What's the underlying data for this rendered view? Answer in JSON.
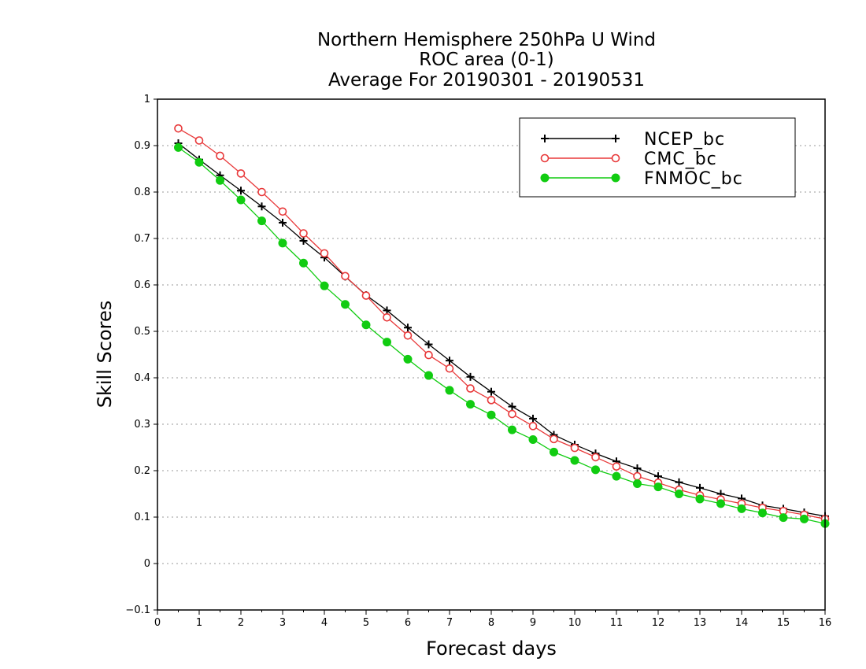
{
  "chart_data": {
    "type": "line",
    "title": [
      "Northern Hemisphere 250hPa U Wind",
      "ROC area (0-1)",
      "Average For 20190301 - 20190531"
    ],
    "xlabel": "Forecast days",
    "ylabel": "Skill Scores",
    "xlim": [
      0,
      16
    ],
    "ylim": [
      -0.1,
      1
    ],
    "xticks": [
      "0",
      "1",
      "2",
      "3",
      "4",
      "5",
      "6",
      "7",
      "8",
      "9",
      "10",
      "11",
      "12",
      "13",
      "14",
      "15",
      "16"
    ],
    "yticks": [
      "-0.1",
      "0",
      "0.1",
      "0.2",
      "0.3",
      "0.4",
      "0.5",
      "0.6",
      "0.7",
      "0.8",
      "0.9",
      "1"
    ],
    "grid": true,
    "legend_position": "top-right",
    "x": [
      0.5,
      1,
      1.5,
      2,
      2.5,
      3,
      3.5,
      4,
      4.5,
      5,
      5.5,
      6,
      6.5,
      7,
      7.5,
      8,
      8.5,
      9,
      9.5,
      10,
      10.5,
      11,
      11.5,
      12,
      12.5,
      13,
      13.5,
      14,
      14.5,
      15,
      15.5,
      16
    ],
    "series": [
      {
        "name": "NCEP_bc",
        "color": "#000000",
        "marker": "plus",
        "values": [
          0.905,
          0.87,
          0.836,
          0.803,
          0.769,
          0.734,
          0.695,
          0.659,
          0.618,
          0.578,
          0.545,
          0.508,
          0.472,
          0.437,
          0.402,
          0.37,
          0.338,
          0.312,
          0.277,
          0.256,
          0.237,
          0.22,
          0.205,
          0.188,
          0.175,
          0.163,
          0.15,
          0.14,
          0.125,
          0.118,
          0.11,
          0.102
        ]
      },
      {
        "name": "CMC_bc",
        "color": "#e8393a",
        "marker": "open-circle",
        "values": [
          0.937,
          0.911,
          0.878,
          0.84,
          0.8,
          0.758,
          0.711,
          0.668,
          0.619,
          0.577,
          0.53,
          0.491,
          0.449,
          0.42,
          0.377,
          0.352,
          0.322,
          0.296,
          0.268,
          0.249,
          0.229,
          0.209,
          0.188,
          0.174,
          0.159,
          0.147,
          0.138,
          0.129,
          0.12,
          0.113,
          0.105,
          0.096
        ]
      },
      {
        "name": "FNMOC_bc",
        "color": "#11cc11",
        "marker": "filled-circle",
        "values": [
          0.896,
          0.864,
          0.825,
          0.783,
          0.738,
          0.69,
          0.647,
          0.598,
          0.558,
          0.514,
          0.477,
          0.44,
          0.405,
          0.373,
          0.343,
          0.32,
          0.288,
          0.267,
          0.24,
          0.222,
          0.202,
          0.188,
          0.172,
          0.165,
          0.15,
          0.139,
          0.129,
          0.118,
          0.109,
          0.099,
          0.096,
          0.086
        ]
      }
    ]
  }
}
